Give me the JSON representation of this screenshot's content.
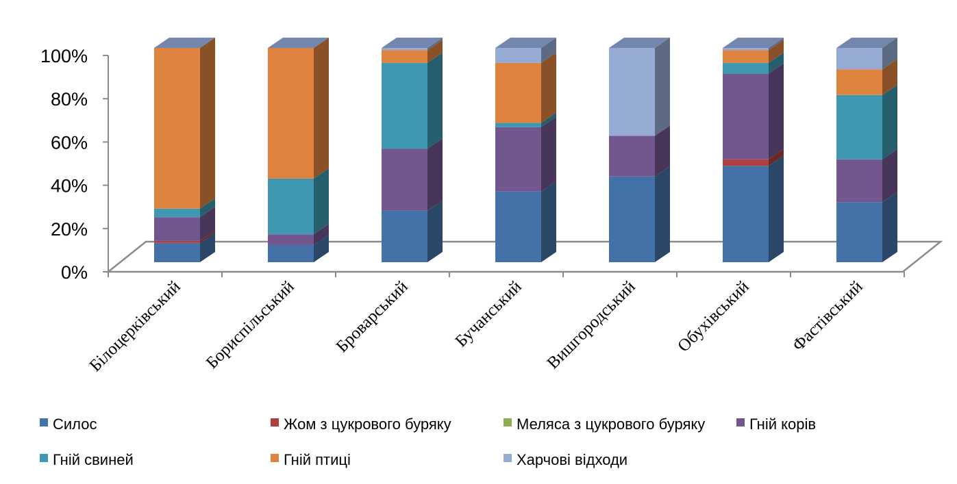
{
  "chart_data": {
    "type": "bar",
    "stacked": true,
    "percent_stacked": true,
    "three_d": true,
    "categories": [
      "Білоцерківський",
      "Бориспільський",
      "Броварський",
      "Бучанський",
      "Вишгородський",
      "Обухівський",
      "Фастівський"
    ],
    "ylim": [
      0,
      100
    ],
    "yticks": [
      0,
      20,
      40,
      60,
      80,
      100
    ],
    "ytick_labels": [
      "0%",
      "20%",
      "40%",
      "60%",
      "80%",
      "100%"
    ],
    "legend_position": "bottom",
    "series": [
      {
        "name": "Силос",
        "color": "#4472A8",
        "values": [
          9,
          8,
          24,
          33,
          40,
          45,
          28
        ]
      },
      {
        "name": "Жом з цукрового буряку",
        "color": "#B0403E",
        "values": [
          1,
          0,
          0,
          0,
          0,
          3,
          0
        ]
      },
      {
        "name": "Меляса з цукрового буряку",
        "color": "#8CAF4F",
        "values": [
          0,
          0,
          0,
          0,
          0,
          0,
          0
        ]
      },
      {
        "name": "Гній корів",
        "color": "#72578F",
        "values": [
          11,
          5,
          29,
          30,
          19,
          40,
          20
        ]
      },
      {
        "name": "Гній свиней",
        "color": "#3F97B0",
        "values": [
          4,
          26,
          40,
          2,
          0,
          5,
          30
        ]
      },
      {
        "name": "Гній птиці",
        "color": "#DE8240",
        "values": [
          75,
          61,
          6,
          28,
          0,
          6,
          12
        ]
      },
      {
        "name": "Харчові відходи",
        "color": "#96ABD3",
        "values": [
          0,
          0,
          1,
          7,
          41,
          1,
          10
        ]
      }
    ]
  }
}
